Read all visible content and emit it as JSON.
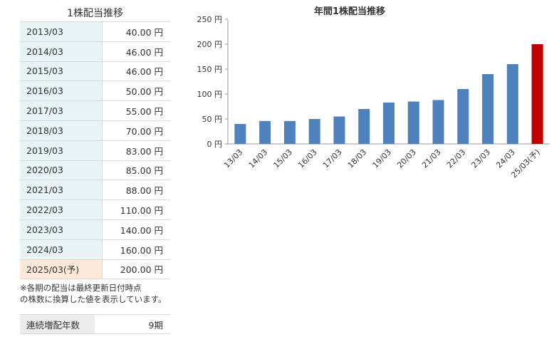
{
  "table": {
    "title": "1株配当推移",
    "rows": [
      {
        "period": "2013/03",
        "amount": "40.00 円"
      },
      {
        "period": "2014/03",
        "amount": "46.00 円"
      },
      {
        "period": "2015/03",
        "amount": "46.00 円"
      },
      {
        "period": "2016/03",
        "amount": "50.00 円"
      },
      {
        "period": "2017/03",
        "amount": "55.00 円"
      },
      {
        "period": "2018/03",
        "amount": "70.00 円"
      },
      {
        "period": "2019/03",
        "amount": "83.00 円"
      },
      {
        "period": "2020/03",
        "amount": "85.00 円"
      },
      {
        "period": "2021/03",
        "amount": "88.00 円"
      },
      {
        "period": "2022/03",
        "amount": "110.00 円"
      },
      {
        "period": "2023/03",
        "amount": "140.00 円"
      },
      {
        "period": "2024/03",
        "amount": "160.00 円"
      },
      {
        "period": "2025/03(予)",
        "amount": "200.00 円",
        "forecast": true
      }
    ]
  },
  "note": {
    "line1": "※各期の配当は最終更新日付時点",
    "line2": "の株数に換算した値を表示しています。"
  },
  "streak": {
    "label": "連続増配年数",
    "value": "9期"
  },
  "colors": {
    "bar": "#4f81bd",
    "forecast_bar": "#c00000",
    "header_bg": "#e8f3f5",
    "forecast_bg": "#fde8da"
  },
  "chart_data": {
    "type": "bar",
    "title": "年間1株配当推移",
    "categories": [
      "13/03",
      "14/03",
      "15/03",
      "16/03",
      "17/03",
      "18/03",
      "19/03",
      "20/03",
      "21/03",
      "22/03",
      "23/03",
      "24/03",
      "25/03(予)"
    ],
    "values": [
      40,
      46,
      46,
      50,
      55,
      70,
      83,
      85,
      88,
      110,
      140,
      160,
      200
    ],
    "highlight_last": true,
    "ylim": [
      0,
      250
    ],
    "yticks": [
      0,
      50,
      100,
      150,
      200,
      250
    ],
    "ytick_labels": [
      "0 円",
      "50 円",
      "100 円",
      "150 円",
      "200 円",
      "250 円"
    ],
    "grid": false
  }
}
